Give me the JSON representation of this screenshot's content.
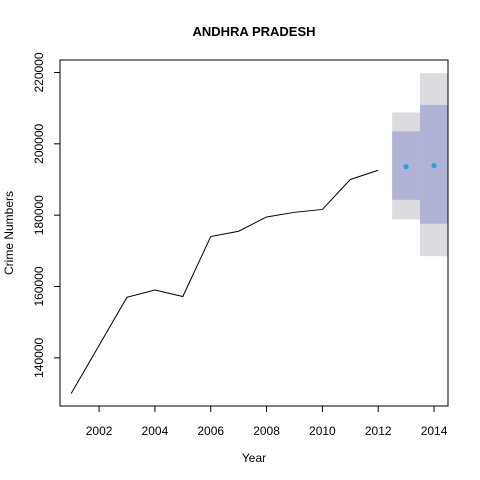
{
  "chart_data": {
    "type": "line",
    "title": "ANDHRA PRADESH",
    "xlabel": "Year",
    "ylabel": "Crime Numbers",
    "xlim": [
      2000.6,
      2014.5
    ],
    "ylim": [
      126500,
      223500
    ],
    "x_ticks": [
      2002,
      2004,
      2006,
      2008,
      2010,
      2012,
      2014
    ],
    "y_ticks": [
      140000,
      160000,
      180000,
      200000,
      220000
    ],
    "grid": false,
    "series": [
      {
        "x": [
          2001,
          2002,
          2003,
          2004,
          2005,
          2006,
          2007,
          2008,
          2009,
          2010,
          2011,
          2012
        ],
        "values": [
          130000,
          143500,
          157000,
          159000,
          157200,
          174000,
          175500,
          179500,
          180800,
          181600,
          190000,
          192600
        ]
      }
    ],
    "forecast": {
      "x": [
        2013,
        2014
      ],
      "point": [
        193600,
        193900
      ],
      "band_80": [
        [
          184300,
          203500
        ],
        [
          177600,
          210900
        ]
      ],
      "band_95": [
        [
          178800,
          208800
        ],
        [
          168500,
          219800
        ]
      ]
    },
    "colors": {
      "line": "#000000",
      "point": "#2a9fe0",
      "band_80": "#b0b3d6",
      "band_95": "#dbdbe0"
    }
  }
}
